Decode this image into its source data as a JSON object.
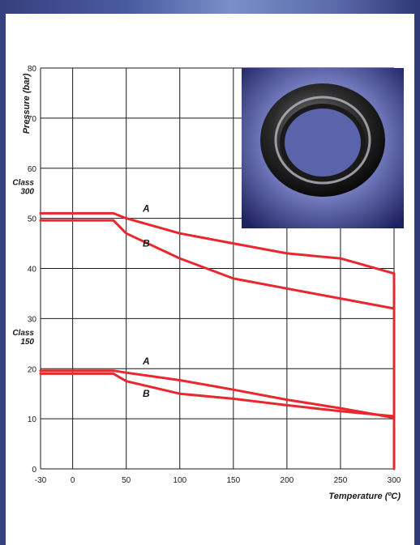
{
  "chart_data": {
    "type": "line",
    "xlabel": "Temperature (ºC)",
    "ylabel": "Pressure (bar)",
    "xlim": [
      -30,
      300
    ],
    "ylim": [
      0,
      80
    ],
    "xticks": [
      -30,
      0,
      50,
      100,
      150,
      200,
      250,
      300
    ],
    "yticks": [
      0,
      10,
      20,
      30,
      40,
      50,
      60,
      70,
      80
    ],
    "grid": true,
    "class_labels": [
      {
        "text": "Class\n300",
        "lines": [
          "Class",
          "300"
        ],
        "y": 56
      },
      {
        "text": "Class\n150",
        "lines": [
          "Class",
          "150"
        ],
        "y": 26
      }
    ],
    "series": [
      {
        "name": "A",
        "group": "Class 300",
        "x": [
          -30,
          38,
          50,
          100,
          150,
          200,
          250,
          300,
          300
        ],
        "y": [
          51,
          51,
          50,
          47,
          45,
          43,
          42,
          39,
          0
        ]
      },
      {
        "name": "B",
        "group": "Class 300",
        "x": [
          -30,
          38,
          50,
          100,
          150,
          200,
          250,
          300
        ],
        "y": [
          49.6,
          49.6,
          47,
          42,
          38,
          36,
          34,
          32
        ]
      },
      {
        "name": "A",
        "group": "Class 150",
        "x": [
          -30,
          38,
          50,
          100,
          150,
          200,
          250,
          300
        ],
        "y": [
          19.6,
          19.6,
          19.2,
          17.7,
          15.8,
          13.8,
          12.1,
          10.2
        ]
      },
      {
        "name": "B",
        "group": "Class 150",
        "x": [
          -30,
          38,
          50,
          100,
          150,
          200,
          250,
          300
        ],
        "y": [
          19,
          19,
          17.5,
          15,
          14,
          12.7,
          11.5,
          10.5
        ]
      }
    ],
    "annotations": [
      {
        "text": "A",
        "x": 5,
        "y": 52
      },
      {
        "text": "B",
        "x": 5,
        "y": 45
      },
      {
        "text": "A",
        "x": 5,
        "y": 21.5
      },
      {
        "text": "B",
        "x": 5,
        "y": 15
      }
    ],
    "colors": {
      "line": "#e8282e",
      "grid": "#1a1a1a",
      "background": "#ffffff",
      "frame": "#3a4688"
    },
    "inset_photo": "gasket-ring-photo"
  }
}
